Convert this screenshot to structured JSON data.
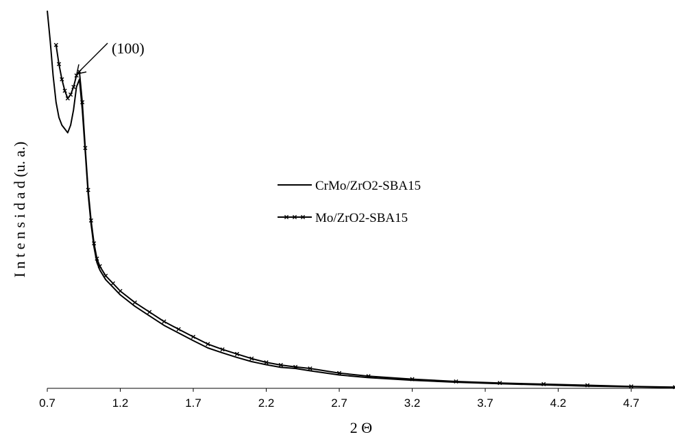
{
  "chart_data": {
    "type": "line",
    "title": "",
    "xlabel": "2 Θ",
    "ylabel": "I n t e n s i d a d  (u. a.)",
    "xlim": [
      0.7,
      5.0
    ],
    "ylim": [
      0,
      100
    ],
    "x_ticks": [
      "0.7",
      "1.2",
      "1.7",
      "2.2",
      "2.7",
      "3.2",
      "3.7",
      "4.2",
      "4.7"
    ],
    "y_ticks_shown": false,
    "grid": false,
    "legend_position": "center",
    "series": [
      {
        "name": "CrMo/ZrO2-SBA15",
        "marker": "none",
        "color": "#000000",
        "x": [
          0.7,
          0.72,
          0.74,
          0.76,
          0.78,
          0.8,
          0.82,
          0.84,
          0.86,
          0.88,
          0.9,
          0.92,
          0.94,
          0.96,
          0.98,
          1.0,
          1.02,
          1.04,
          1.06,
          1.1,
          1.15,
          1.2,
          1.3,
          1.4,
          1.5,
          1.6,
          1.7,
          1.8,
          1.9,
          2.0,
          2.1,
          2.2,
          2.3,
          2.4,
          2.5,
          2.7,
          2.9,
          3.2,
          3.5,
          3.8,
          4.1,
          4.4,
          4.7,
          5.0
        ],
        "y": [
          99,
          91,
          82,
          75,
          71,
          69,
          68,
          67,
          69,
          73,
          79,
          81,
          73,
          62,
          51,
          43,
          37,
          33,
          31,
          28.5,
          26.5,
          24.5,
          21.5,
          19,
          16.5,
          14.5,
          12.5,
          10.6,
          9.3,
          8.1,
          7,
          6.2,
          5.5,
          5.2,
          4.6,
          3.5,
          2.8,
          2.1,
          1.6,
          1.2,
          0.9,
          0.6,
          0.4,
          0.2
        ]
      },
      {
        "name": "Mo/ZrO2-SBA15",
        "marker": "x",
        "color": "#000000",
        "x": [
          0.76,
          0.78,
          0.8,
          0.82,
          0.84,
          0.86,
          0.88,
          0.9,
          0.92,
          0.94,
          0.96,
          0.98,
          1.0,
          1.02,
          1.04,
          1.06,
          1.1,
          1.15,
          1.2,
          1.3,
          1.4,
          1.5,
          1.6,
          1.7,
          1.8,
          1.9,
          2.0,
          2.1,
          2.2,
          2.3,
          2.4,
          2.5,
          2.7,
          2.9,
          3.2,
          3.5,
          3.8,
          4.1,
          4.4,
          4.7,
          5.0
        ],
        "y": [
          90,
          85,
          81,
          78,
          76,
          77,
          79,
          82,
          83,
          75,
          63,
          52,
          44,
          38,
          34,
          32,
          29.5,
          27.5,
          25.5,
          22.5,
          20,
          17.5,
          15.5,
          13.5,
          11.6,
          10.2,
          9,
          7.8,
          6.8,
          6.1,
          5.6,
          5.2,
          4,
          3.2,
          2.4,
          1.8,
          1.4,
          1.1,
          0.8,
          0.5,
          0.3
        ]
      }
    ],
    "annotations": [
      {
        "text": "(100)",
        "x": 0.92,
        "y": 83
      }
    ]
  }
}
